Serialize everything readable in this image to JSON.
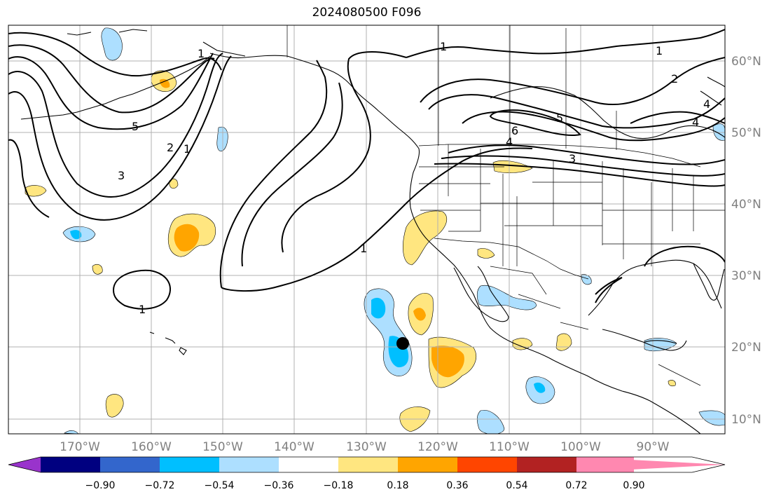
{
  "title": "2024080500 F096",
  "map": {
    "lat_labels": [
      "60°N",
      "50°N",
      "40°N",
      "30°N",
      "20°N",
      "10°N"
    ],
    "lon_labels": [
      "170°W",
      "160°W",
      "150°W",
      "140°W",
      "130°W",
      "120°W",
      "110°W",
      "100°W",
      "90°W"
    ],
    "contour_labels": [
      "1",
      "1",
      "1",
      "1",
      "1",
      "1",
      "2",
      "2",
      "3",
      "3",
      "4",
      "4",
      "5",
      "5",
      "6",
      "4"
    ],
    "colors": {
      "land_line": "#000000",
      "grid": "#b0b0b0",
      "contour": "#000000",
      "tick_label": "#808080"
    }
  },
  "colorbar": {
    "colors": [
      "#9933cc",
      "#000080",
      "#3366cc",
      "#00bfff",
      "#addfff",
      "#ffffff",
      "#ffe680",
      "#ffa500",
      "#ff4500",
      "#b22222",
      "#ff88b0"
    ],
    "tick_labels": [
      "−0.90",
      "−0.72",
      "−0.54",
      "−0.36",
      "−0.18",
      "0.18",
      "0.36",
      "0.54",
      "0.72",
      "0.90"
    ]
  }
}
